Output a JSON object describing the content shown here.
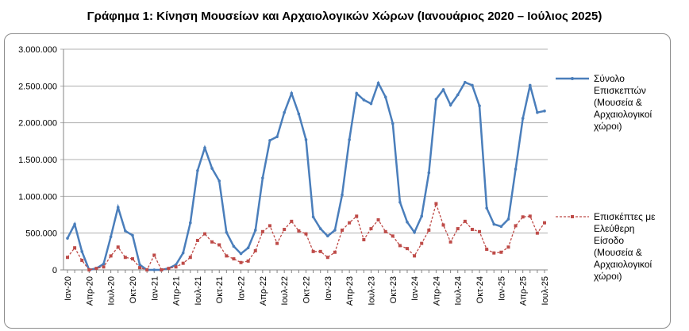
{
  "chart_data": {
    "type": "line",
    "title": "Γράφημα 1: Κίνηση Μουσείων και Αρχαιολογικών Χώρων (Ιανουάριος 2020 – Ιούλιος 2025)",
    "xlabel": "",
    "ylabel": "",
    "ylim": [
      0,
      3000000
    ],
    "yticks": [
      "0",
      "500.000",
      "1.000.000",
      "1.500.000",
      "2.000.000",
      "2.500.000",
      "3.000.000"
    ],
    "xtick_labels": [
      "Ιαν-20",
      "Απρ-20",
      "Ιουλ-20",
      "Οκτ-20",
      "Ιαν-21",
      "Απρ-21",
      "Ιουλ-21",
      "Οκτ-21",
      "Ιαν-22",
      "Απρ-22",
      "Ιουλ-22",
      "Οκτ-22",
      "Ιαν-23",
      "Απρ-23",
      "Ιουλ-23",
      "Οκτ-23",
      "Ιαν-24",
      "Απρ-24",
      "Ιουλ-24",
      "Οκτ-24",
      "Ιαν-25",
      "Απρ-25",
      "Ιουλ-25"
    ],
    "grid": true,
    "legend_position": "right",
    "series": [
      {
        "name": "Σύνολο Επισκεπτών (Μουσεία & Αρχαιολογικοί χώροι)",
        "color": "#4a7ebb",
        "style": "solid",
        "values": [
          430000,
          620000,
          250000,
          0,
          20000,
          80000,
          450000,
          850000,
          530000,
          470000,
          70000,
          0,
          0,
          0,
          20000,
          70000,
          230000,
          640000,
          1350000,
          1660000,
          1380000,
          1210000,
          510000,
          320000,
          220000,
          300000,
          540000,
          1250000,
          1760000,
          1810000,
          2140000,
          2400000,
          2120000,
          1770000,
          720000,
          560000,
          460000,
          540000,
          1020000,
          1770000,
          2400000,
          2310000,
          2260000,
          2540000,
          2350000,
          1990000,
          920000,
          650000,
          510000,
          730000,
          1320000,
          2320000,
          2450000,
          2240000,
          2380000,
          2550000,
          2510000,
          2230000,
          840000,
          620000,
          590000,
          690000,
          1370000,
          2060000,
          2510000,
          2140000,
          2160000
        ]
      },
      {
        "name": "Επισκέπτες με Ελεύθερη Είσοδο (Μουσεία & Αρχαιολογικοί χώροι)",
        "color": "#be4b48",
        "style": "dashed",
        "values": [
          170000,
          300000,
          130000,
          0,
          20000,
          40000,
          190000,
          310000,
          170000,
          150000,
          30000,
          0,
          200000,
          0,
          20000,
          40000,
          90000,
          170000,
          400000,
          490000,
          380000,
          340000,
          190000,
          150000,
          100000,
          120000,
          260000,
          520000,
          600000,
          360000,
          550000,
          660000,
          530000,
          490000,
          250000,
          250000,
          170000,
          240000,
          540000,
          640000,
          730000,
          410000,
          560000,
          680000,
          520000,
          460000,
          330000,
          290000,
          190000,
          360000,
          540000,
          900000,
          610000,
          380000,
          560000,
          660000,
          550000,
          520000,
          280000,
          230000,
          240000,
          310000,
          600000,
          720000,
          730000,
          500000,
          640000
        ]
      }
    ]
  },
  "legend": {
    "total_lines": [
      "Σύνολο",
      "Επισκεπτών",
      "(Μουσεία &",
      "Αρχαιολογικοί",
      "χώροι)"
    ],
    "free_lines": [
      "Επισκέπτες με",
      "Ελεύθερη",
      "Είσοδο",
      "(Μουσεία &",
      "Αρχαιολογικοί",
      "χώροι)"
    ]
  }
}
